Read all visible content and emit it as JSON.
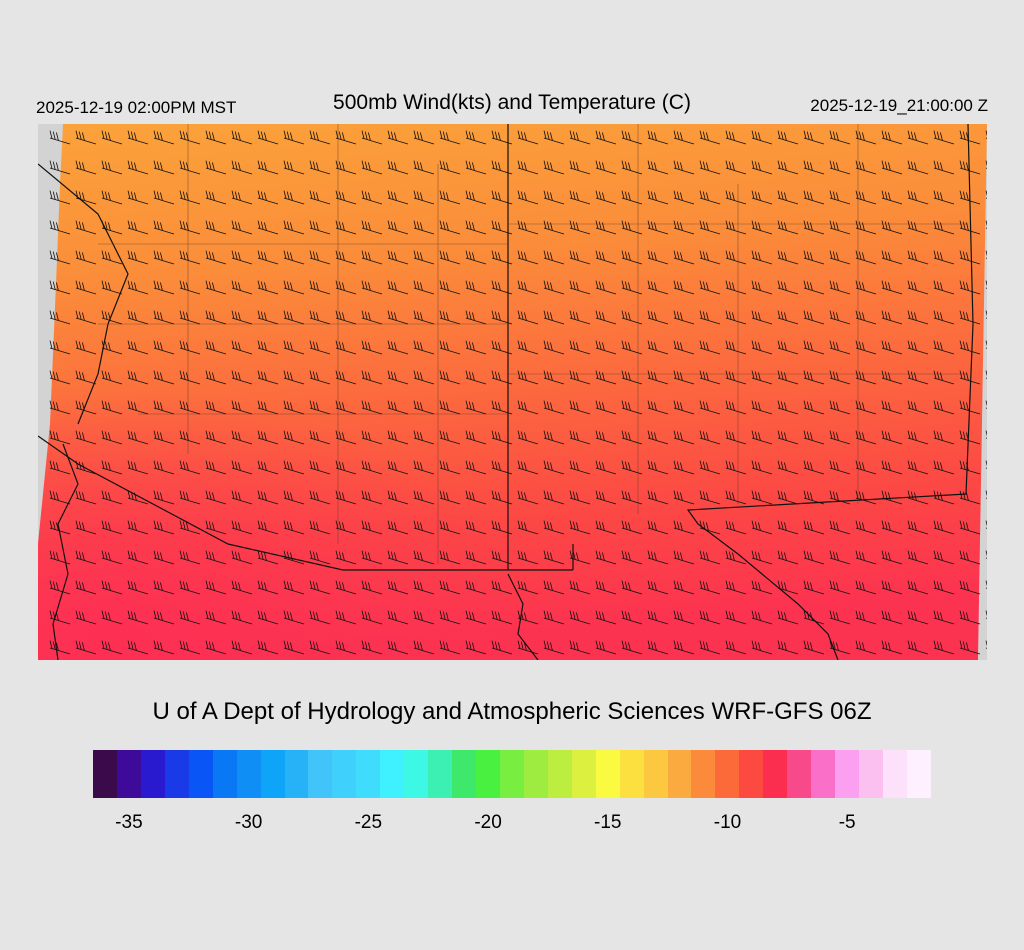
{
  "header": {
    "valid_local": "2025-12-19 02:00PM MST",
    "title": "500mb Wind(kts) and Temperature (C)",
    "valid_utc": "2025-12-19_21:00:00 Z"
  },
  "footer": {
    "credit": "U of A Dept of Hydrology and Atmospheric Sciences WRF-GFS 06Z"
  },
  "map": {
    "field": "500mb temperature (C) with wind barbs (kts)",
    "temperature_range_c": [
      -12,
      -6
    ],
    "wind_direction": "westerly / west-southwest",
    "wind_speed_kts_typical": 30
  },
  "colorbar": {
    "colors": [
      "#3a0a4a",
      "#3e0a9a",
      "#2a1acf",
      "#1a3ae8",
      "#0a55f5",
      "#0a78f5",
      "#0f8ef5",
      "#0ea4f8",
      "#27b2f8",
      "#40c4fa",
      "#3fd0fb",
      "#3fdcfd",
      "#3ff0ff",
      "#3ef8e6",
      "#3cf0b4",
      "#3ee86a",
      "#4af040",
      "#78ee40",
      "#9eec40",
      "#bcee40",
      "#dcf040",
      "#fafa40",
      "#fce040",
      "#fcc840",
      "#fbaa40",
      "#fb8a3a",
      "#fc6a3a",
      "#fc4a40",
      "#fc2e50",
      "#f84a8a",
      "#fa70c8",
      "#fba0f0",
      "#fcc0f0",
      "#fde0fa",
      "#fef0fe"
    ],
    "ticks": [
      {
        "label": "-35",
        "value": -35
      },
      {
        "label": "-30",
        "value": -30
      },
      {
        "label": "-25",
        "value": -25
      },
      {
        "label": "-20",
        "value": -20
      },
      {
        "label": "-15",
        "value": -15
      },
      {
        "label": "-10",
        "value": -10
      },
      {
        "label": "-5",
        "value": -5
      }
    ],
    "min": -36,
    "step": 1
  },
  "icons": {
    "wind_barb": "wind-barb-icon"
  }
}
